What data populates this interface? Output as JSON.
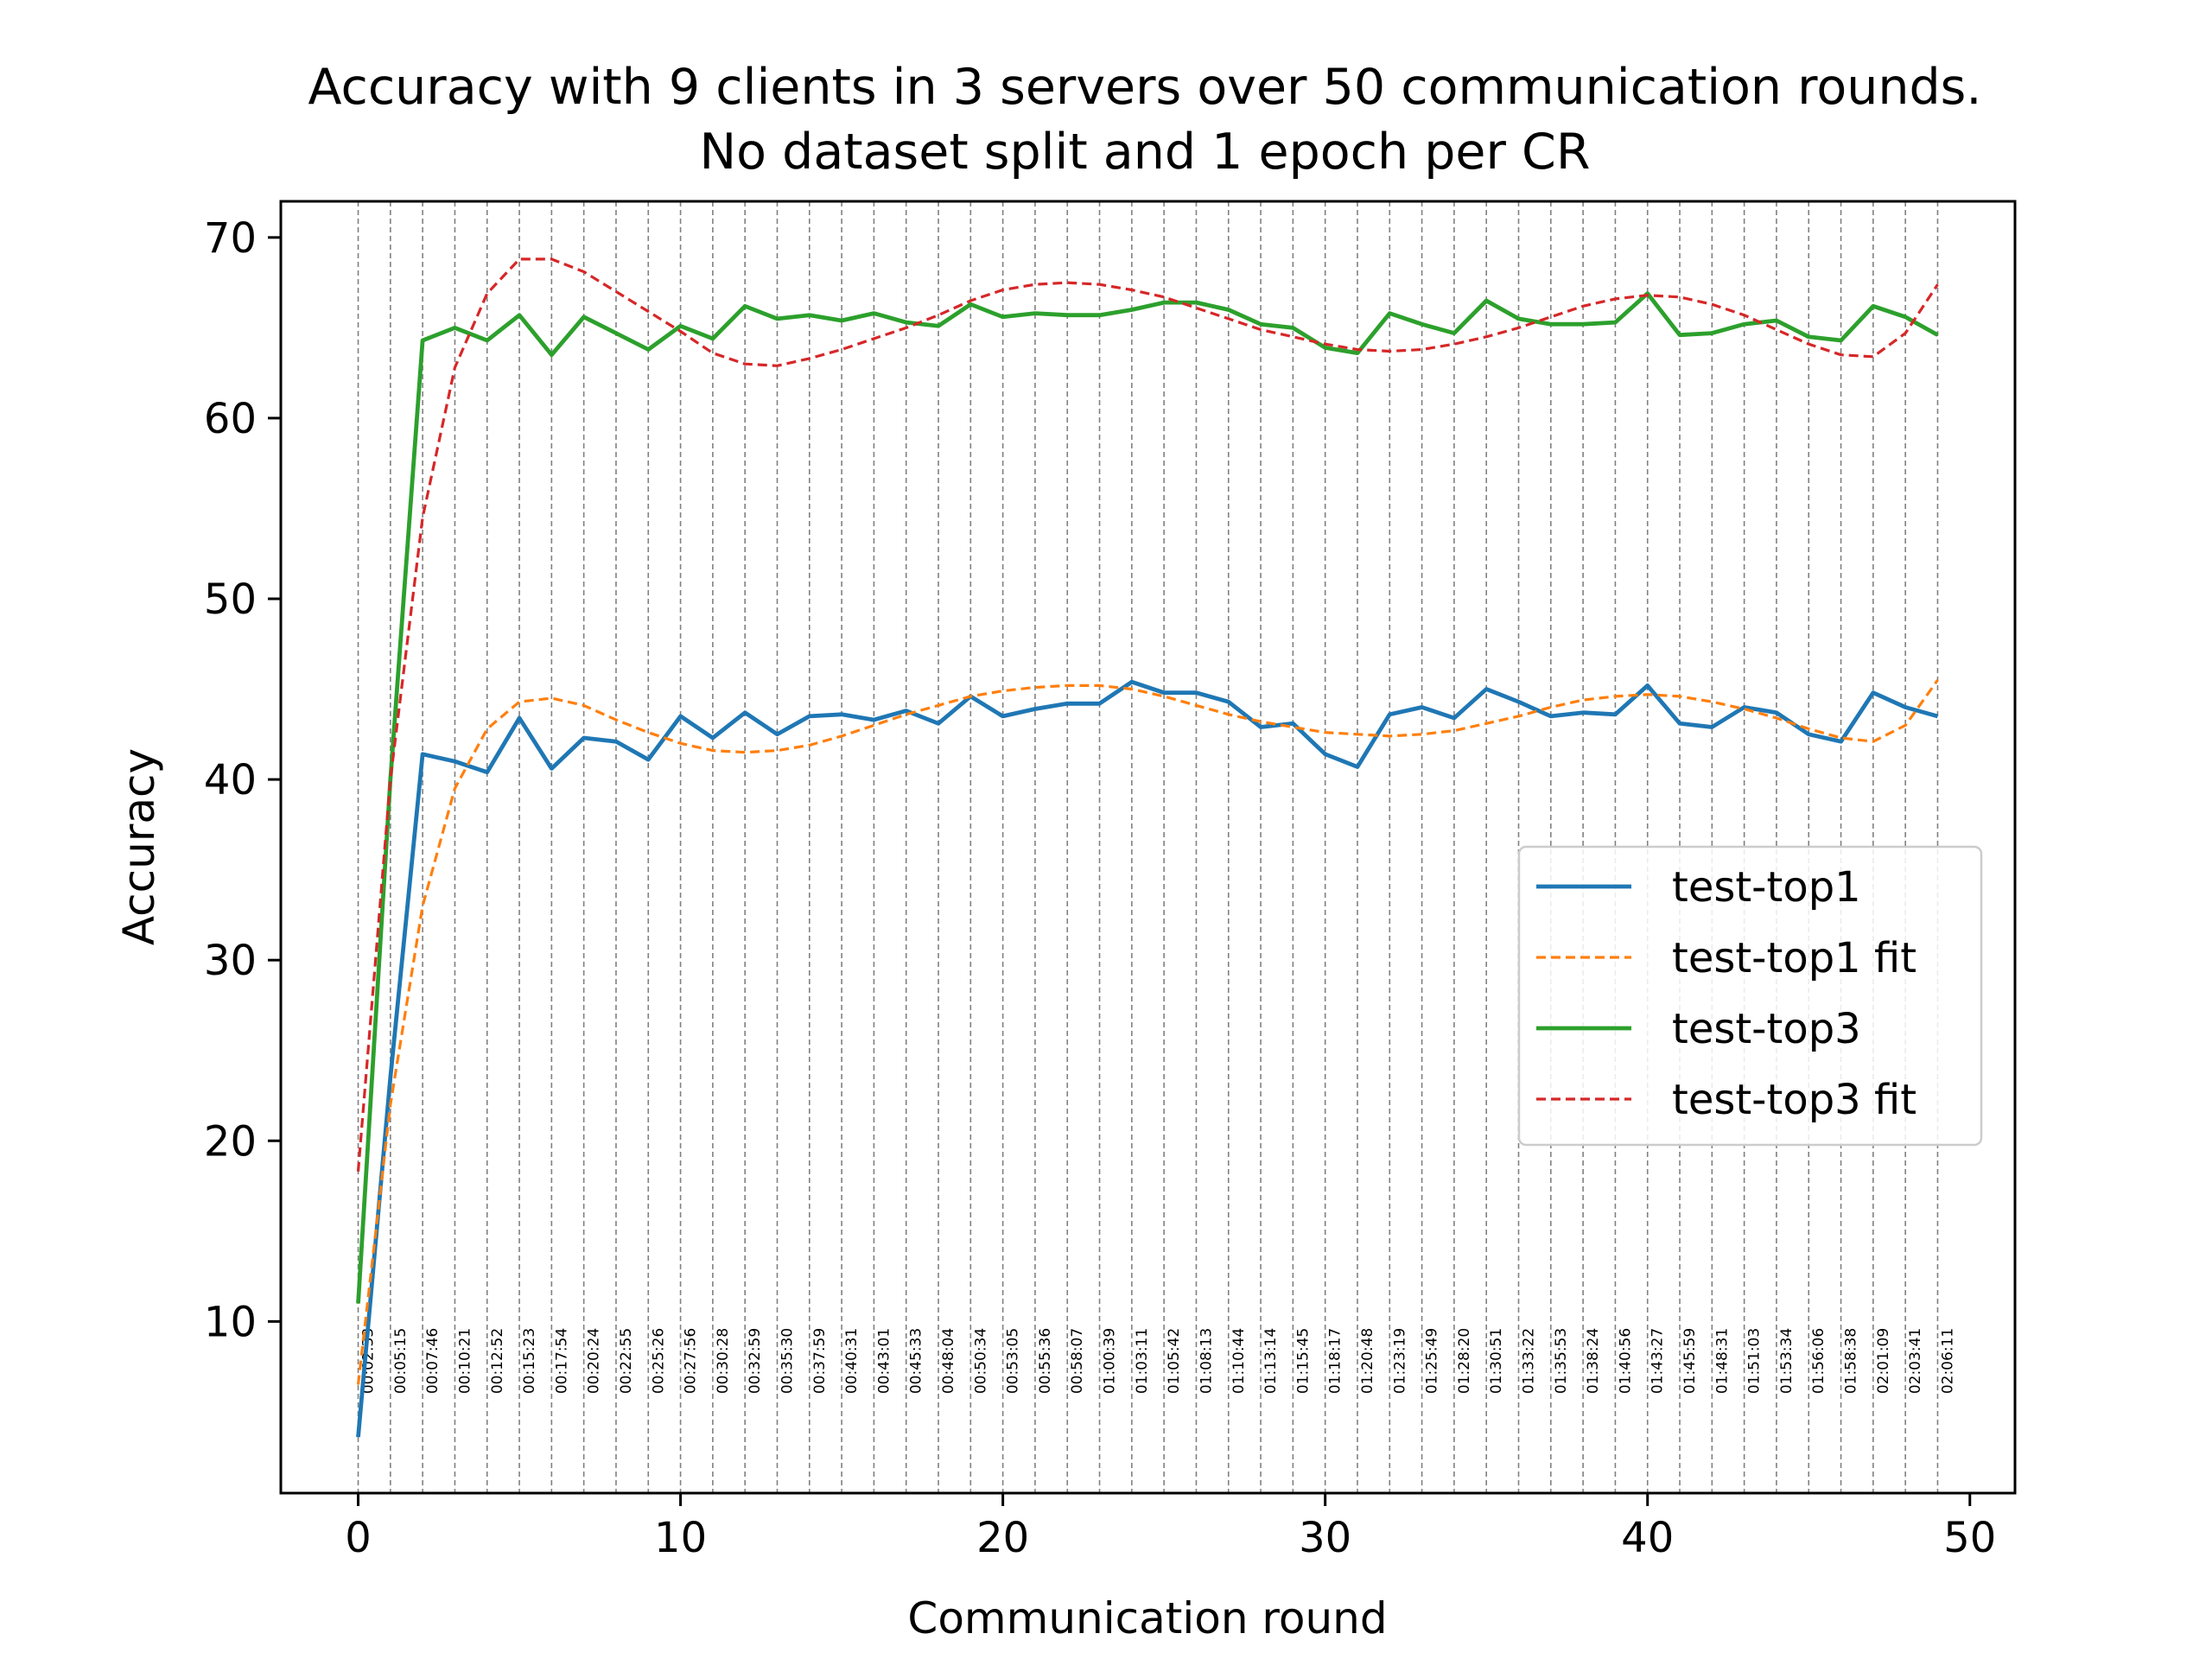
{
  "chart_data": {
    "type": "line",
    "title_lines": [
      "Accuracy with 9 clients in 3 servers over 50 communication rounds.",
      "No dataset split and 1 epoch per CR"
    ],
    "xlabel": "Communication round",
    "ylabel": "Accuracy",
    "xlim": [
      -2.4,
      51.4
    ],
    "ylim": [
      0.5,
      72
    ],
    "xticks": [
      0,
      10,
      20,
      30,
      40,
      50
    ],
    "yticks": [
      10,
      20,
      30,
      40,
      50,
      60,
      70
    ],
    "grid": false,
    "legend_position": "center-right",
    "x": [
      0,
      1,
      2,
      3,
      4,
      5,
      6,
      7,
      8,
      9,
      10,
      11,
      12,
      13,
      14,
      15,
      16,
      17,
      18,
      19,
      20,
      21,
      22,
      23,
      24,
      25,
      26,
      27,
      28,
      29,
      30,
      31,
      32,
      33,
      34,
      35,
      36,
      37,
      38,
      39,
      40,
      41,
      42,
      43,
      44,
      45,
      46,
      47,
      48,
      49
    ],
    "series": [
      {
        "name": "test-top1",
        "style": "solid",
        "color": "#1f77b4",
        "values": [
          3.6,
          23.5,
          41.4,
          41.0,
          40.4,
          43.4,
          40.6,
          42.3,
          42.1,
          41.1,
          43.5,
          42.3,
          43.7,
          42.5,
          43.5,
          43.6,
          43.3,
          43.8,
          43.1,
          44.6,
          43.5,
          43.9,
          44.2,
          44.2,
          45.4,
          44.8,
          44.8,
          44.3,
          42.9,
          43.1,
          41.4,
          40.7,
          43.6,
          44.0,
          43.4,
          45.0,
          44.3,
          43.5,
          43.7,
          43.6,
          45.2,
          43.1,
          42.9,
          44.0,
          43.7,
          42.5,
          42.1,
          44.8,
          44.0,
          43.5
        ]
      },
      {
        "name": "test-top1 fit",
        "style": "dashed",
        "color": "#ff7f0e",
        "values": [
          6.5,
          22.0,
          33.0,
          39.5,
          42.8,
          44.3,
          44.5,
          44.1,
          43.3,
          42.6,
          42.0,
          41.6,
          41.5,
          41.6,
          41.9,
          42.4,
          43.0,
          43.6,
          44.1,
          44.6,
          44.9,
          45.1,
          45.2,
          45.2,
          45.0,
          44.6,
          44.1,
          43.6,
          43.2,
          42.9,
          42.6,
          42.5,
          42.4,
          42.5,
          42.7,
          43.1,
          43.5,
          44.0,
          44.4,
          44.6,
          44.7,
          44.6,
          44.3,
          43.9,
          43.4,
          42.8,
          42.3,
          42.1,
          43.0,
          45.5
        ]
      },
      {
        "name": "test-top3",
        "style": "solid",
        "color": "#2ca02c",
        "values": [
          11.0,
          40.0,
          64.3,
          65.0,
          64.3,
          65.7,
          63.5,
          65.6,
          64.7,
          63.8,
          65.1,
          64.4,
          66.2,
          65.5,
          65.7,
          65.4,
          65.8,
          65.3,
          65.1,
          66.3,
          65.6,
          65.8,
          65.7,
          65.7,
          66.0,
          66.4,
          66.4,
          66.0,
          65.2,
          65.0,
          63.9,
          63.6,
          65.8,
          65.2,
          64.7,
          66.5,
          65.5,
          65.2,
          65.2,
          65.3,
          66.9,
          64.6,
          64.7,
          65.2,
          65.4,
          64.5,
          64.3,
          66.2,
          65.6,
          64.6
        ]
      },
      {
        "name": "test-top3 fit",
        "style": "dashed",
        "color": "#d62728",
        "values": [
          18.3,
          40.0,
          54.5,
          62.8,
          66.9,
          68.8,
          68.8,
          68.1,
          67.0,
          65.9,
          64.8,
          63.6,
          63.0,
          62.9,
          63.3,
          63.8,
          64.4,
          65.0,
          65.7,
          66.5,
          67.1,
          67.4,
          67.5,
          67.4,
          67.1,
          66.7,
          66.1,
          65.5,
          64.9,
          64.5,
          64.1,
          63.8,
          63.7,
          63.8,
          64.1,
          64.5,
          65.0,
          65.6,
          66.2,
          66.6,
          66.8,
          66.7,
          66.3,
          65.7,
          64.9,
          64.1,
          63.5,
          63.4,
          64.7,
          67.4
        ]
      }
    ],
    "time_labels": [
      "00:02:33",
      "00:05:15",
      "00:07:46",
      "00:10:21",
      "00:12:52",
      "00:15:23",
      "00:17:54",
      "00:20:24",
      "00:22:55",
      "00:25:26",
      "00:27:56",
      "00:30:28",
      "00:32:59",
      "00:35:30",
      "00:37:59",
      "00:40:31",
      "00:43:01",
      "00:45:33",
      "00:48:04",
      "00:50:34",
      "00:53:05",
      "00:55:36",
      "00:58:07",
      "01:00:39",
      "01:03:11",
      "01:05:42",
      "01:08:13",
      "01:10:44",
      "01:13:14",
      "01:15:45",
      "01:18:17",
      "01:20:48",
      "01:23:19",
      "01:25:49",
      "01:28:20",
      "01:30:51",
      "01:33:22",
      "01:35:53",
      "01:38:24",
      "01:40:56",
      "01:43:27",
      "01:45:59",
      "01:48:31",
      "01:51:03",
      "01:53:34",
      "01:56:06",
      "01:58:38",
      "02:01:09",
      "02:03:41",
      "02:06:11"
    ]
  }
}
